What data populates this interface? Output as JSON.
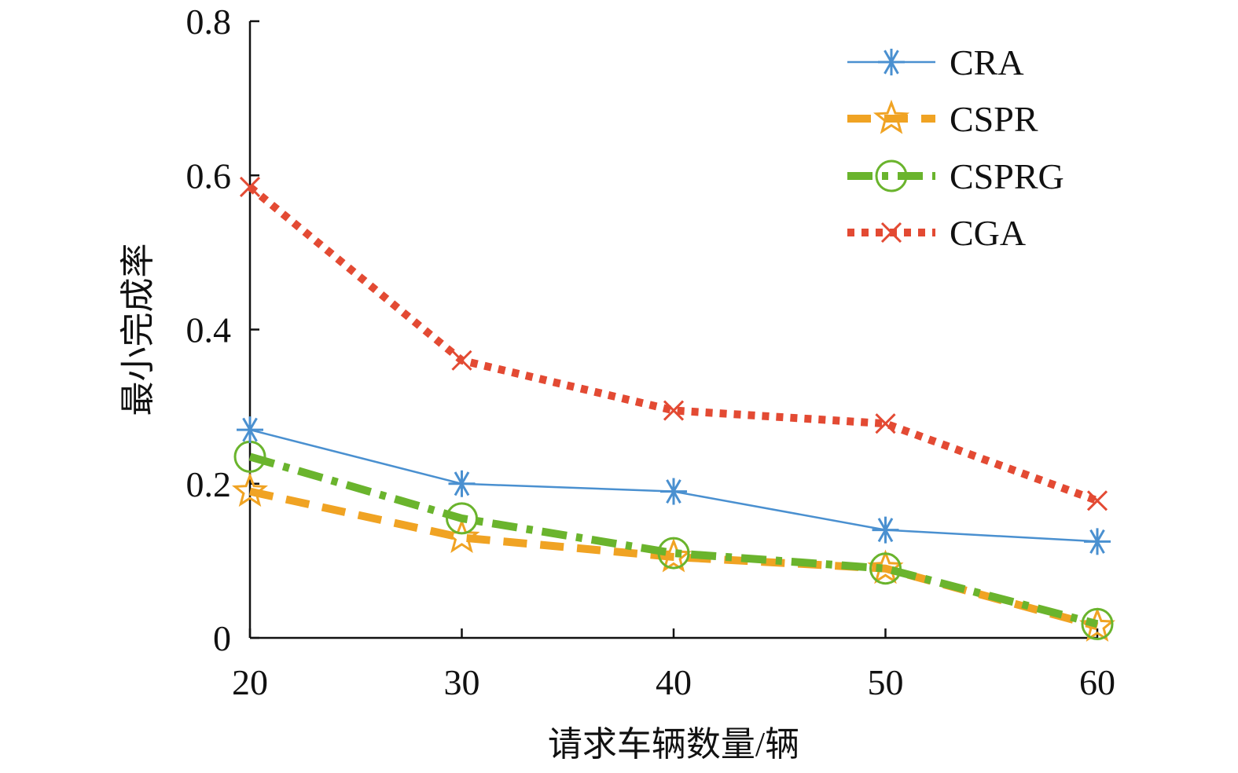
{
  "chart_data": {
    "type": "line",
    "title": "",
    "xlabel": "请求车辆数量/辆",
    "ylabel": "最小完成率",
    "x": [
      20,
      30,
      40,
      50,
      60
    ],
    "xticks": [
      "20",
      "30",
      "40",
      "50",
      "60"
    ],
    "yticks": [
      "0",
      "0.2",
      "0.4",
      "0.6",
      "0.8"
    ],
    "ytick_values": [
      0,
      0.2,
      0.4,
      0.6,
      0.8
    ],
    "xlim": [
      20,
      60
    ],
    "ylim": [
      0,
      0.8
    ],
    "grid": false,
    "legend_position": "top-right",
    "series": [
      {
        "name": "CRA",
        "values": [
          0.27,
          0.2,
          0.19,
          0.14,
          0.125
        ],
        "color": "#4a90d0",
        "line": "solid",
        "marker": "asterisk"
      },
      {
        "name": "CSPR",
        "values": [
          0.19,
          0.13,
          0.105,
          0.09,
          0.015
        ],
        "color": "#f0a323",
        "line": "dashed",
        "marker": "star"
      },
      {
        "name": "CSPRG",
        "values": [
          0.235,
          0.155,
          0.11,
          0.09,
          0.018
        ],
        "color": "#6ab42d",
        "line": "dashdot",
        "marker": "circle"
      },
      {
        "name": "CGA",
        "values": [
          0.585,
          0.36,
          0.295,
          0.278,
          0.178
        ],
        "color": "#e34a33",
        "line": "dotted",
        "marker": "x"
      }
    ]
  }
}
